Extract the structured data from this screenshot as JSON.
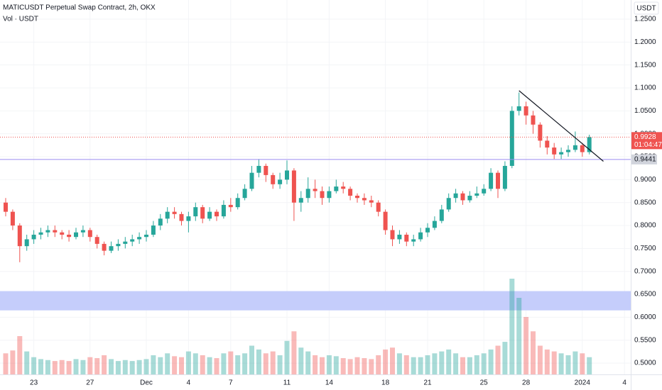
{
  "chart_data": {
    "type": "candlestick",
    "title": "MATICUSDT Perpetual Swap Contract, 2h, OKX",
    "subtitle": "Vol · USDT",
    "currency": "USDT",
    "categories": [
      null,
      null,
      null,
      null,
      "23",
      null,
      null,
      null,
      null,
      null,
      null,
      null,
      "27",
      null,
      null,
      null,
      null,
      null,
      null,
      null,
      "Dec",
      null,
      null,
      null,
      null,
      null,
      "4",
      null,
      null,
      null,
      null,
      null,
      "7",
      null,
      null,
      null,
      null,
      null,
      null,
      null,
      "11",
      null,
      null,
      null,
      null,
      null,
      "14",
      null,
      null,
      null,
      null,
      null,
      null,
      null,
      "18",
      null,
      null,
      null,
      null,
      null,
      "21",
      null,
      null,
      null,
      null,
      null,
      null,
      null,
      "25",
      null,
      null,
      null,
      null,
      null,
      "28",
      null,
      null,
      null,
      null,
      null,
      null,
      null,
      "2024",
      null,
      null,
      null,
      null,
      null,
      "4"
    ],
    "open": [
      0.85,
      0.83,
      0.8,
      0.755,
      0.77,
      0.78,
      0.785,
      0.79,
      0.785,
      0.78,
      0.775,
      0.785,
      0.79,
      0.775,
      0.76,
      0.745,
      0.755,
      0.76,
      0.765,
      0.77,
      0.775,
      0.78,
      0.8,
      0.815,
      0.83,
      0.825,
      0.81,
      0.82,
      0.84,
      0.815,
      0.83,
      0.82,
      0.845,
      0.84,
      0.86,
      0.88,
      0.915,
      0.93,
      0.91,
      0.89,
      0.9,
      0.92,
      0.85,
      0.86,
      0.88,
      0.875,
      0.86,
      0.875,
      0.885,
      0.88,
      0.865,
      0.86,
      0.855,
      0.85,
      0.83,
      0.79,
      0.77,
      0.78,
      0.765,
      0.77,
      0.785,
      0.795,
      0.81,
      0.835,
      0.86,
      0.87,
      0.855,
      0.865,
      0.87,
      0.88,
      0.915,
      0.88,
      0.93,
      1.05,
      1.06,
      1.04,
      1.02,
      0.985,
      0.97,
      0.955,
      0.96,
      0.965,
      0.975,
      0.96,
      null,
      null,
      null,
      null,
      null
    ],
    "high": [
      0.86,
      0.835,
      0.805,
      0.78,
      0.79,
      0.795,
      0.8,
      0.8,
      0.79,
      0.79,
      0.795,
      0.8,
      0.795,
      0.78,
      0.765,
      0.765,
      0.77,
      0.775,
      0.78,
      0.785,
      0.79,
      0.81,
      0.825,
      0.84,
      0.84,
      0.83,
      0.83,
      0.85,
      0.845,
      0.84,
      0.835,
      0.855,
      0.86,
      0.87,
      0.89,
      0.93,
      0.945,
      0.935,
      0.915,
      0.915,
      0.942,
      0.925,
      0.875,
      0.905,
      0.9,
      0.885,
      0.885,
      0.9,
      0.895,
      0.885,
      0.87,
      0.87,
      0.865,
      0.855,
      0.835,
      0.8,
      0.79,
      0.785,
      0.78,
      0.795,
      0.805,
      0.82,
      0.845,
      0.87,
      0.88,
      0.875,
      0.875,
      0.885,
      0.89,
      0.925,
      0.92,
      0.94,
      1.06,
      1.09,
      1.07,
      1.05,
      1.025,
      0.995,
      0.98,
      0.97,
      0.975,
      1.005,
      0.98,
      0.998,
      null,
      null,
      null,
      null,
      null
    ],
    "low": [
      0.82,
      0.79,
      0.72,
      0.745,
      0.76,
      0.77,
      0.775,
      0.775,
      0.77,
      0.765,
      0.77,
      0.775,
      0.765,
      0.75,
      0.735,
      0.74,
      0.745,
      0.75,
      0.755,
      0.76,
      0.765,
      0.775,
      0.79,
      0.805,
      0.815,
      0.8,
      0.785,
      0.81,
      0.805,
      0.81,
      0.81,
      0.815,
      0.83,
      0.835,
      0.855,
      0.875,
      0.905,
      0.895,
      0.88,
      0.88,
      0.89,
      0.81,
      0.83,
      0.85,
      0.86,
      0.845,
      0.85,
      0.87,
      0.87,
      0.855,
      0.85,
      0.845,
      0.84,
      0.82,
      0.78,
      0.755,
      0.76,
      0.755,
      0.755,
      0.765,
      0.775,
      0.79,
      0.805,
      0.83,
      0.85,
      0.845,
      0.85,
      0.86,
      0.865,
      0.875,
      0.86,
      0.875,
      0.925,
      1.04,
      1.02,
      1.0,
      0.97,
      0.955,
      0.945,
      0.945,
      0.95,
      0.96,
      0.95,
      0.955,
      null,
      null,
      null,
      null,
      null
    ],
    "close": [
      0.83,
      0.8,
      0.755,
      0.77,
      0.78,
      0.785,
      0.79,
      0.785,
      0.78,
      0.775,
      0.785,
      0.79,
      0.775,
      0.76,
      0.745,
      0.755,
      0.76,
      0.765,
      0.77,
      0.775,
      0.78,
      0.8,
      0.815,
      0.83,
      0.825,
      0.81,
      0.82,
      0.84,
      0.815,
      0.83,
      0.82,
      0.845,
      0.84,
      0.86,
      0.88,
      0.915,
      0.93,
      0.91,
      0.89,
      0.9,
      0.92,
      0.85,
      0.86,
      0.88,
      0.875,
      0.86,
      0.875,
      0.885,
      0.88,
      0.865,
      0.86,
      0.855,
      0.85,
      0.83,
      0.79,
      0.77,
      0.78,
      0.765,
      0.77,
      0.785,
      0.795,
      0.81,
      0.835,
      0.86,
      0.87,
      0.855,
      0.865,
      0.87,
      0.88,
      0.915,
      0.88,
      0.93,
      1.05,
      1.06,
      1.04,
      1.02,
      0.985,
      0.97,
      0.955,
      0.96,
      0.965,
      0.975,
      0.96,
      0.9928,
      null,
      null,
      null,
      null,
      null
    ],
    "volume": [
      22,
      25,
      40,
      24,
      18,
      16,
      15,
      14,
      15,
      14,
      16,
      15,
      18,
      17,
      20,
      16,
      14,
      15,
      14,
      15,
      16,
      20,
      18,
      22,
      19,
      18,
      24,
      22,
      20,
      18,
      17,
      22,
      24,
      20,
      22,
      30,
      26,
      22,
      24,
      20,
      35,
      45,
      28,
      24,
      20,
      18,
      20,
      19,
      17,
      16,
      18,
      17,
      16,
      20,
      26,
      28,
      22,
      20,
      18,
      18,
      20,
      22,
      24,
      26,
      22,
      18,
      18,
      20,
      22,
      26,
      30,
      34,
      100,
      80,
      60,
      45,
      30,
      26,
      24,
      22,
      20,
      24,
      22,
      18,
      null,
      null,
      null,
      null,
      null
    ],
    "vlim": [
      0,
      100
    ],
    "ylim": [
      0.4754,
      1.2917
    ],
    "yticks": [
      {
        "value": 1.25,
        "label": "1.2500"
      },
      {
        "value": 1.2,
        "label": "1.2000"
      },
      {
        "value": 1.15,
        "label": "1.1500"
      },
      {
        "value": 1.1,
        "label": "1.1000"
      },
      {
        "value": 1.05,
        "label": "1.0500"
      },
      {
        "value": 1.0,
        "label": "1.0000"
      },
      {
        "value": 0.95,
        "label": "0.9500"
      },
      {
        "value": 0.9,
        "label": "0.9000"
      },
      {
        "value": 0.85,
        "label": "0.8500"
      },
      {
        "value": 0.8,
        "label": "0.8000"
      },
      {
        "value": 0.75,
        "label": "0.7500"
      },
      {
        "value": 0.7,
        "label": "0.7000"
      },
      {
        "value": 0.65,
        "label": "0.6500"
      },
      {
        "value": 0.6,
        "label": "0.6000"
      },
      {
        "value": 0.55,
        "label": "0.5500"
      },
      {
        "value": 0.5,
        "label": "0.5000"
      }
    ],
    "last_price": 0.9928,
    "countdown": "01:04:47",
    "level": 0.9441,
    "zone": [
      0.615,
      0.657
    ],
    "trendline": {
      "from": [
        73,
        1.094
      ],
      "to": [
        85,
        0.94
      ]
    },
    "up_color": "#26a69a",
    "down_color": "#ef5350",
    "level_color": "#9c8cf0",
    "zone_color": "#c5cdfb"
  }
}
